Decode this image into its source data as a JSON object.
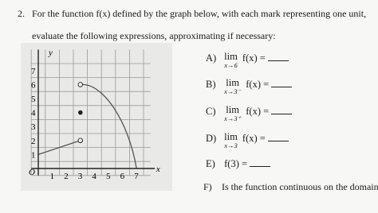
{
  "problem": {
    "number": "2.",
    "line1": "For the function f(x) defined by the graph below, with each mark representing one unit,",
    "line2": "evaluate the following expressions, approximating if necessary:"
  },
  "graph": {
    "x_axis_label": "x",
    "y_axis_label": "y",
    "origin_label": "O",
    "x_tick_labels": [
      "1",
      "2",
      "3",
      "4",
      "5",
      "6",
      "7"
    ],
    "y_tick_labels": [
      "1",
      "2",
      "3",
      "4",
      "5",
      "6",
      "7"
    ]
  },
  "parts": [
    {
      "label": "A)",
      "lim": "lim",
      "sub": "x→6",
      "expr": "f(x) ="
    },
    {
      "label": "B)",
      "lim": "lim",
      "sub": "x→3⁻",
      "expr": "f(x) ="
    },
    {
      "label": "C)",
      "lim": "lim",
      "sub": "x→3⁺",
      "expr": "f(x) ="
    },
    {
      "label": "D)",
      "lim": "lim",
      "sub": "x→3",
      "expr": "f(x) ="
    },
    {
      "label": "E)",
      "expr": "f(3) ="
    },
    {
      "label": "F)",
      "text": "Is the function continuous on the domain? Ex"
    }
  ]
}
